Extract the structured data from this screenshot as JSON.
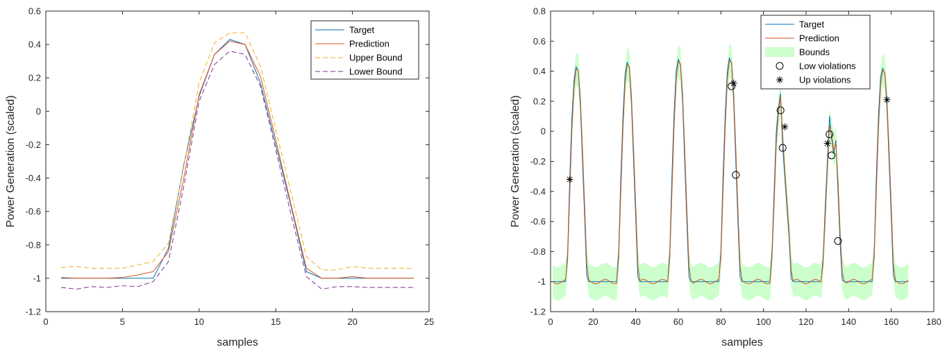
{
  "chart_data": [
    {
      "type": "line",
      "title": "",
      "xlabel": "samples",
      "ylabel": "Power Generation (scaled)",
      "xlim": [
        0,
        25
      ],
      "ylim": [
        -1.2,
        0.6
      ],
      "xticks": [
        0,
        5,
        10,
        15,
        20,
        25
      ],
      "yticks": [
        -1.2,
        -1,
        -0.8,
        -0.6,
        -0.4,
        -0.2,
        0,
        0.2,
        0.4,
        0.6
      ],
      "xtick_labels": [
        "0",
        "5",
        "10",
        "15",
        "20",
        "25"
      ],
      "ytick_labels": [
        "-1.2",
        "-1",
        "-0.8",
        "-0.6",
        "-0.4",
        "-0.2",
        "0",
        "0.2",
        "0.4",
        "0.6"
      ],
      "grid": false,
      "legend_position": "top-right",
      "x": [
        1,
        2,
        3,
        4,
        5,
        6,
        7,
        8,
        9,
        10,
        11,
        12,
        13,
        14,
        15,
        16,
        17,
        18,
        19,
        20,
        21,
        22,
        23,
        24
      ],
      "series": [
        {
          "name": "Target",
          "color": "#0072BD",
          "dash": "solid",
          "values": [
            -1.0,
            -1.0,
            -1.0,
            -1.0,
            -1.0,
            -1.0,
            -1.0,
            -0.82,
            -0.32,
            0.09,
            0.34,
            0.43,
            0.4,
            0.17,
            -0.2,
            -0.57,
            -0.96,
            -1.0,
            -1.0,
            -1.0,
            -1.0,
            -1.0,
            -1.0,
            -1.0
          ]
        },
        {
          "name": "Prediction",
          "color": "#D95319",
          "dash": "solid",
          "values": [
            -0.995,
            -1.0,
            -1.0,
            -1.0,
            -0.995,
            -0.98,
            -0.96,
            -0.84,
            -0.4,
            0.1,
            0.34,
            0.42,
            0.4,
            0.21,
            -0.17,
            -0.56,
            -0.94,
            -1.0,
            -1.0,
            -0.99,
            -1.0,
            -1.0,
            -1.0,
            -1.0
          ]
        },
        {
          "name": "Upper Bound",
          "color": "#EDB120",
          "dash": "dashed",
          "values": [
            -0.935,
            -0.93,
            -0.94,
            -0.94,
            -0.94,
            -0.92,
            -0.9,
            -0.79,
            -0.33,
            0.17,
            0.41,
            0.47,
            0.47,
            0.27,
            -0.11,
            -0.49,
            -0.87,
            -0.95,
            -0.95,
            -0.93,
            -0.94,
            -0.94,
            -0.94,
            -0.94
          ]
        },
        {
          "name": "Lower Bound",
          "color": "#7E2F8E",
          "dash": "dashed",
          "values": [
            -1.055,
            -1.065,
            -1.05,
            -1.055,
            -1.045,
            -1.05,
            -1.02,
            -0.9,
            -0.45,
            0.06,
            0.28,
            0.36,
            0.34,
            0.15,
            -0.23,
            -0.62,
            -0.99,
            -1.065,
            -1.05,
            -1.05,
            -1.055,
            -1.055,
            -1.055,
            -1.055
          ]
        }
      ]
    },
    {
      "type": "line",
      "title": "",
      "xlabel": "samples",
      "ylabel": "Power Generation (scaled)",
      "xlim": [
        0,
        180
      ],
      "ylim": [
        -1.2,
        0.8
      ],
      "xticks": [
        0,
        20,
        40,
        60,
        80,
        100,
        120,
        140,
        160,
        180
      ],
      "yticks": [
        -1.2,
        -1,
        -0.8,
        -0.6,
        -0.4,
        -0.2,
        0,
        0.2,
        0.4,
        0.6,
        0.8
      ],
      "xtick_labels": [
        "0",
        "20",
        "40",
        "60",
        "80",
        "100",
        "120",
        "140",
        "160",
        "180"
      ],
      "ytick_labels": [
        "-1.2",
        "-1",
        "-0.8",
        "-0.6",
        "-0.4",
        "-0.2",
        "0",
        "0.2",
        "0.4",
        "0.6",
        "0.8"
      ],
      "grid": false,
      "legend_position": "top-right",
      "n_samples": 168,
      "baseline": -1.0,
      "days": [
        {
          "start": 0,
          "vals": [
            -1.0,
            -1.0,
            -1.0,
            -1.0,
            -1.0,
            -1.0,
            -1.0,
            -0.82,
            -0.32,
            0.09,
            0.34,
            0.43,
            0.4,
            0.17,
            -0.2,
            -0.57,
            -0.96,
            -1.0,
            -1.0,
            -1.0,
            -1.0,
            -1.0,
            -1.0,
            -1.0
          ]
        },
        {
          "start": 24,
          "vals": [
            -1.0,
            -1.0,
            -1.0,
            -1.0,
            -1.0,
            -1.0,
            -1.0,
            -0.8,
            -0.3,
            0.1,
            0.38,
            0.46,
            0.42,
            0.18,
            -0.2,
            -0.58,
            -0.97,
            -1.0,
            -1.0,
            -1.0,
            -1.0,
            -1.0,
            -1.0,
            -1.0
          ]
        },
        {
          "start": 48,
          "vals": [
            -1.0,
            -1.0,
            -1.0,
            -1.0,
            -1.0,
            -1.0,
            -1.0,
            -0.8,
            -0.3,
            0.12,
            0.4,
            0.48,
            0.44,
            0.2,
            -0.2,
            -0.6,
            -0.97,
            -1.0,
            -1.0,
            -1.0,
            -1.0,
            -1.0,
            -1.0,
            -1.0
          ]
        },
        {
          "start": 72,
          "vals": [
            -1.0,
            -1.0,
            -1.0,
            -1.0,
            -1.0,
            -1.0,
            -1.0,
            -0.8,
            -0.3,
            0.1,
            0.4,
            0.49,
            0.45,
            0.2,
            -0.2,
            -0.6,
            -0.97,
            -1.0,
            -1.0,
            -1.0,
            -1.0,
            -1.0,
            -1.0,
            -1.0
          ]
        },
        {
          "start": 96,
          "vals": [
            -1.0,
            -1.0,
            -1.0,
            -1.0,
            -1.0,
            -1.0,
            -1.0,
            -0.8,
            -0.4,
            0.0,
            0.15,
            0.25,
            -0.1,
            -0.3,
            -0.5,
            -0.7,
            -0.98,
            -1.0,
            -1.0,
            -1.0,
            -1.0,
            -1.0,
            -1.0,
            -1.0
          ]
        },
        {
          "start": 120,
          "vals": [
            -1.0,
            -1.0,
            -1.0,
            -1.0,
            -1.0,
            -1.0,
            -1.0,
            -0.85,
            -0.5,
            -0.2,
            0.1,
            -0.05,
            -0.15,
            -0.06,
            -0.4,
            -0.75,
            -0.99,
            -1.0,
            -1.0,
            -1.0,
            -1.0,
            -1.0,
            -1.0,
            -1.0
          ]
        },
        {
          "start": 144,
          "vals": [
            -1.0,
            -1.0,
            -1.0,
            -1.0,
            -1.0,
            -1.0,
            -1.0,
            -0.8,
            -0.3,
            0.1,
            0.36,
            0.42,
            0.38,
            0.16,
            -0.2,
            -0.57,
            -0.96,
            -1.0,
            -1.0,
            -1.0,
            -1.0,
            -1.0,
            -1.0,
            -1.0
          ]
        }
      ],
      "series": [
        {
          "name": "Target",
          "color": "#0072BD",
          "dash": "solid"
        },
        {
          "name": "Prediction",
          "color": "#D95319",
          "dash": "solid",
          "prediction_offset": 0.03
        },
        {
          "name": "Bounds",
          "color": "#CCFFCC",
          "type": "band",
          "half_width": 0.11
        }
      ],
      "low_violations": {
        "name": "Low violations",
        "marker": "circle",
        "points": [
          [
            85,
            0.3
          ],
          [
            87,
            -0.29
          ],
          [
            108,
            0.14
          ],
          [
            109,
            -0.11
          ],
          [
            131,
            -0.02
          ],
          [
            132,
            -0.16
          ],
          [
            135,
            -0.73
          ]
        ]
      },
      "up_violations": {
        "name": "Up violations",
        "marker": "asterisk",
        "points": [
          [
            9,
            -0.32
          ],
          [
            86,
            0.32
          ],
          [
            110,
            0.03
          ],
          [
            130,
            -0.08
          ],
          [
            158,
            0.21
          ]
        ]
      }
    }
  ]
}
